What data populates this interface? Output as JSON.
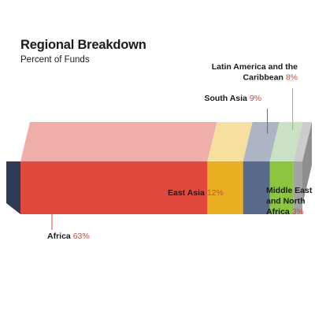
{
  "chart_data": {
    "type": "bar",
    "title": "Regional Breakdown",
    "subtitle": "Percent of Funds",
    "xlabel": "",
    "ylabel": "",
    "stacked": true,
    "unit": "%",
    "categories": [
      "Africa",
      "East Asia",
      "South Asia",
      "Latin America and the Caribbean",
      "Middle East and North Africa"
    ],
    "values": [
      63,
      12,
      9,
      8,
      3
    ],
    "value_labels": [
      "63%",
      "12%",
      "9%",
      "8%",
      "3%"
    ],
    "colors": [
      "#e04a3e",
      "#e9ae22",
      "#5a6a8c",
      "#8cc63f",
      "#a3a3a3"
    ],
    "top_colors": [
      "#efaaa6",
      "#f6dd9a",
      "#a9b0c1",
      "#c7dfc1",
      "#c9c9c9"
    ],
    "end_cap_color": "#2f3a55"
  }
}
